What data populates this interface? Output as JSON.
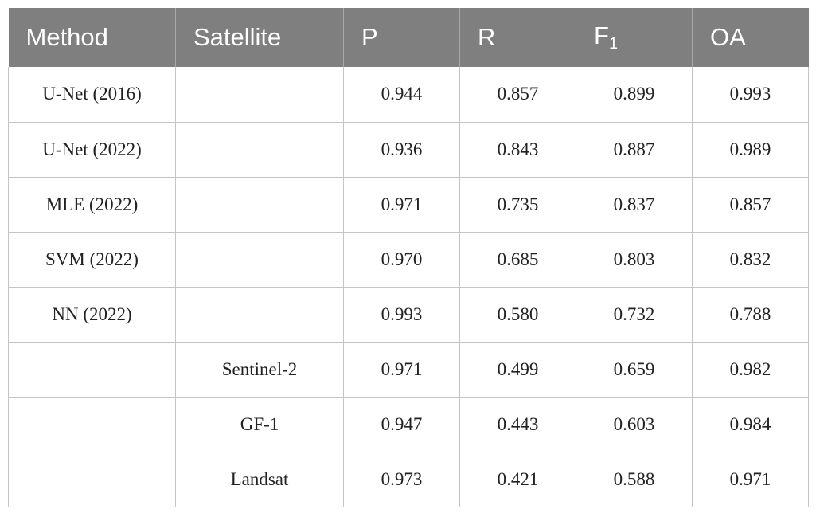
{
  "table": {
    "headers": [
      {
        "label": "Method",
        "sub": ""
      },
      {
        "label": "Satellite",
        "sub": ""
      },
      {
        "label": "P",
        "sub": ""
      },
      {
        "label": "R",
        "sub": ""
      },
      {
        "label": "F",
        "sub": "1"
      },
      {
        "label": "OA",
        "sub": ""
      }
    ],
    "rows": [
      [
        "U-Net (2016)",
        "",
        "0.944",
        "0.857",
        "0.899",
        "0.993"
      ],
      [
        "U-Net (2022)",
        "",
        "0.936",
        "0.843",
        "0.887",
        "0.989"
      ],
      [
        "MLE (2022)",
        "",
        "0.971",
        "0.735",
        "0.837",
        "0.857"
      ],
      [
        "SVM (2022)",
        "",
        "0.970",
        "0.685",
        "0.803",
        "0.832"
      ],
      [
        "NN (2022)",
        "",
        "0.993",
        "0.580",
        "0.732",
        "0.788"
      ],
      [
        "",
        "Sentinel-2",
        "0.971",
        "0.499",
        "0.659",
        "0.982"
      ],
      [
        "",
        "GF-1",
        "0.947",
        "0.443",
        "0.603",
        "0.984"
      ],
      [
        "",
        "Landsat",
        "0.973",
        "0.421",
        "0.588",
        "0.971"
      ]
    ]
  }
}
